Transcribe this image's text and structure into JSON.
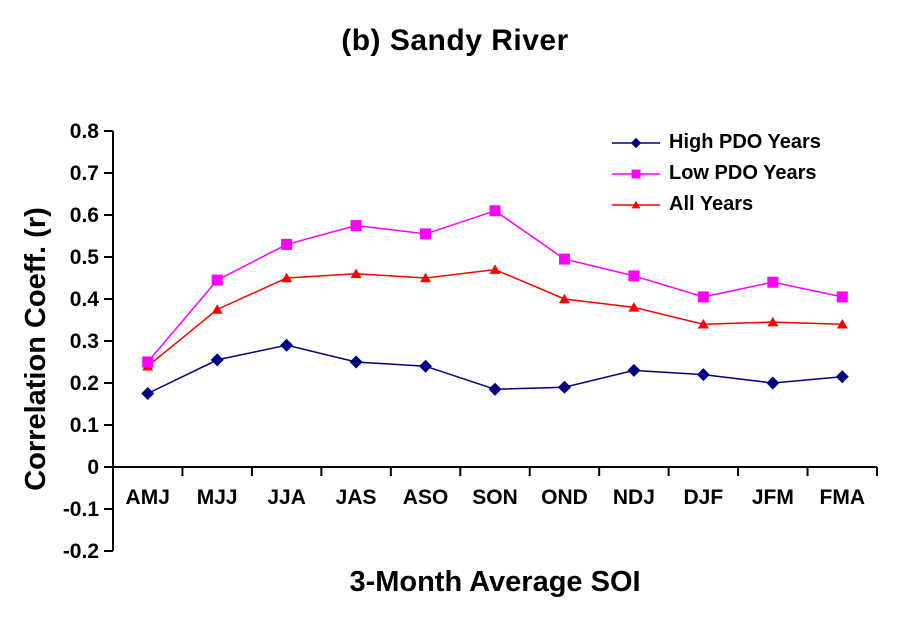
{
  "chart_data": {
    "type": "line",
    "title": "(b) Sandy River",
    "xlabel": "3-Month Average SOI",
    "ylabel": "Correlation Coeff. (r)",
    "categories": [
      "AMJ",
      "MJJ",
      "JJA",
      "JAS",
      "ASO",
      "SON",
      "OND",
      "NDJ",
      "DJF",
      "JFM",
      "FMA"
    ],
    "series": [
      {
        "name": "High PDO Years",
        "color": "#000080",
        "marker": "diamond",
        "values": [
          0.175,
          0.255,
          0.29,
          0.25,
          0.24,
          0.185,
          0.19,
          0.23,
          0.22,
          0.2,
          0.215
        ]
      },
      {
        "name": "Low PDO Years",
        "color": "#FF00FF",
        "marker": "square",
        "values": [
          0.25,
          0.445,
          0.53,
          0.575,
          0.555,
          0.61,
          0.495,
          0.455,
          0.405,
          0.44,
          0.405
        ]
      },
      {
        "name": "All Years",
        "color": "#FF0000",
        "marker": "triangle",
        "values": [
          0.24,
          0.375,
          0.45,
          0.46,
          0.45,
          0.47,
          0.4,
          0.38,
          0.34,
          0.345,
          0.34
        ]
      }
    ],
    "ylim": [
      -0.2,
      0.8
    ],
    "y_ticks": [
      0.8,
      0.7,
      0.6,
      0.5,
      0.4,
      0.3,
      0.2,
      0.1,
      0,
      -0.1,
      -0.2
    ],
    "y_tick_labels": [
      "0.8",
      "0.7",
      "0.6",
      "0.5",
      "0.4",
      "0.3",
      "0.2",
      "0.1",
      "0",
      "-0.1",
      "-0.2"
    ],
    "grid": false,
    "legend_position": "inside-top-right",
    "axis_color": "#000000",
    "background_color": "#FFFFFF"
  }
}
